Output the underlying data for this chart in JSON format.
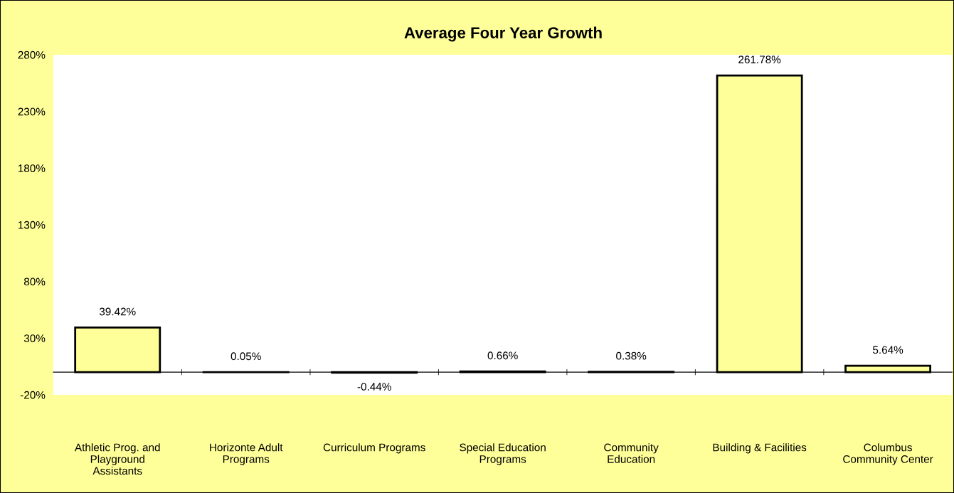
{
  "chart_data": {
    "type": "bar",
    "title": "Average Four Year Growth",
    "categories": [
      "Athletic Prog. and\nPlayground\nAssistants",
      "Horizonte Adult\nPrograms",
      "Curriculum Programs",
      "Special Education\nPrograms",
      "Community\nEducation",
      "Building & Facilities",
      "Columbus\nCommunity Center"
    ],
    "values": [
      39.42,
      0.05,
      -0.44,
      0.66,
      0.38,
      261.78,
      5.64
    ],
    "value_labels": [
      "39.42%",
      "0.05%",
      "-0.44%",
      "0.66%",
      "0.38%",
      "261.78%",
      "5.64%"
    ],
    "color": "#ffff99",
    "ylim": [
      -20,
      280
    ],
    "yticks": [
      {
        "value": -20,
        "label": "-20%"
      },
      {
        "value": 30,
        "label": "30%"
      },
      {
        "value": 80,
        "label": "80%"
      },
      {
        "value": 130,
        "label": "130%"
      },
      {
        "value": 180,
        "label": "180%"
      },
      {
        "value": 230,
        "label": "230%"
      },
      {
        "value": 280,
        "label": "280%"
      }
    ],
    "grid": false,
    "legend": false
  }
}
